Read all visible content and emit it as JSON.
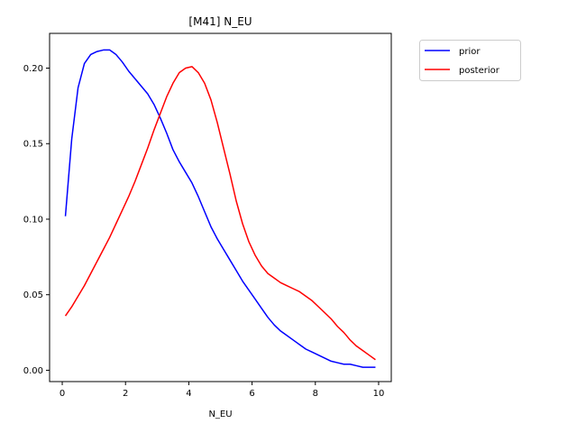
{
  "chart_data": {
    "type": "line",
    "title": "[M41] N_EU",
    "xlabel": "N_EU",
    "ylabel": "",
    "xlim": [
      -0.4,
      10.4
    ],
    "ylim": [
      -0.0075,
      0.223
    ],
    "xticks": [
      0,
      2,
      4,
      6,
      8,
      10
    ],
    "yticks": [
      0.0,
      0.05,
      0.1,
      0.15,
      0.2
    ],
    "ytick_labels": [
      "0.00",
      "0.05",
      "0.10",
      "0.15",
      "0.20"
    ],
    "grid": false,
    "legend_position": "outside-top-right",
    "series": [
      {
        "name": "prior",
        "color": "#0000ff",
        "x": [
          0.1,
          0.3,
          0.5,
          0.7,
          0.9,
          1.1,
          1.3,
          1.5,
          1.7,
          1.9,
          2.1,
          2.3,
          2.5,
          2.7,
          2.9,
          3.1,
          3.3,
          3.5,
          3.7,
          3.9,
          4.1,
          4.3,
          4.5,
          4.7,
          4.9,
          5.1,
          5.3,
          5.5,
          5.7,
          5.9,
          6.1,
          6.3,
          6.5,
          6.7,
          6.9,
          7.1,
          7.3,
          7.5,
          7.7,
          7.9,
          8.1,
          8.3,
          8.5,
          8.7,
          8.9,
          9.1,
          9.3,
          9.5,
          9.7,
          9.9
        ],
        "values": [
          0.102,
          0.153,
          0.187,
          0.203,
          0.209,
          0.211,
          0.212,
          0.212,
          0.209,
          0.204,
          0.198,
          0.193,
          0.188,
          0.183,
          0.176,
          0.167,
          0.157,
          0.146,
          0.138,
          0.131,
          0.124,
          0.115,
          0.105,
          0.095,
          0.087,
          0.08,
          0.073,
          0.066,
          0.059,
          0.053,
          0.047,
          0.041,
          0.035,
          0.03,
          0.026,
          0.023,
          0.02,
          0.017,
          0.014,
          0.012,
          0.01,
          0.008,
          0.006,
          0.005,
          0.004,
          0.004,
          0.003,
          0.002,
          0.002,
          0.002
        ]
      },
      {
        "name": "posterior",
        "color": "#ff0000",
        "x": [
          0.1,
          0.3,
          0.5,
          0.7,
          0.9,
          1.1,
          1.3,
          1.5,
          1.7,
          1.9,
          2.1,
          2.3,
          2.5,
          2.7,
          2.9,
          3.1,
          3.3,
          3.5,
          3.7,
          3.9,
          4.1,
          4.3,
          4.5,
          4.7,
          4.9,
          5.1,
          5.3,
          5.5,
          5.7,
          5.9,
          6.1,
          6.3,
          6.5,
          6.7,
          6.9,
          7.1,
          7.3,
          7.5,
          7.7,
          7.9,
          8.1,
          8.3,
          8.5,
          8.7,
          8.9,
          9.1,
          9.3,
          9.5,
          9.7,
          9.9
        ],
        "values": [
          0.036,
          0.042,
          0.049,
          0.056,
          0.064,
          0.072,
          0.08,
          0.088,
          0.097,
          0.106,
          0.115,
          0.125,
          0.136,
          0.147,
          0.159,
          0.17,
          0.181,
          0.19,
          0.197,
          0.2,
          0.201,
          0.197,
          0.19,
          0.179,
          0.164,
          0.147,
          0.13,
          0.112,
          0.097,
          0.085,
          0.076,
          0.069,
          0.064,
          0.061,
          0.058,
          0.056,
          0.054,
          0.052,
          0.049,
          0.046,
          0.042,
          0.038,
          0.034,
          0.029,
          0.025,
          0.02,
          0.016,
          0.013,
          0.01,
          0.007
        ]
      }
    ]
  }
}
